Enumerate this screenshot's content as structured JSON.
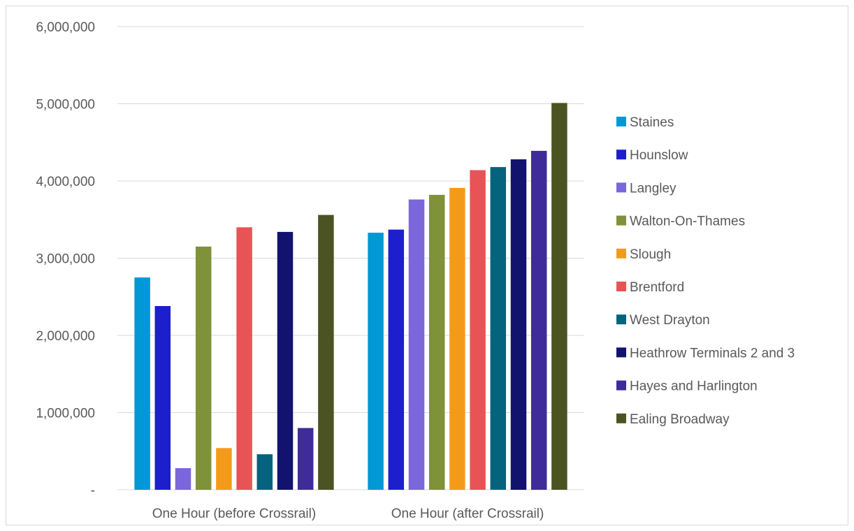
{
  "chart_data": {
    "type": "bar",
    "categories": [
      "One Hour (before Crossrail)",
      "One Hour (after Crossrail)"
    ],
    "series": [
      {
        "name": "Staines",
        "color": "#0099D5",
        "values": [
          2750000,
          3330000
        ]
      },
      {
        "name": "Hounslow",
        "color": "#1D1ECC",
        "values": [
          2380000,
          3370000
        ]
      },
      {
        "name": "Langley",
        "color": "#7B66DB",
        "values": [
          280000,
          3760000
        ]
      },
      {
        "name": "Walton-On-Thames",
        "color": "#7F9139",
        "values": [
          3150000,
          3820000
        ]
      },
      {
        "name": "Slough",
        "color": "#F39B19",
        "values": [
          540000,
          3910000
        ]
      },
      {
        "name": "Brentford",
        "color": "#E85455",
        "values": [
          3400000,
          4140000
        ]
      },
      {
        "name": "West Drayton",
        "color": "#05637D",
        "values": [
          460000,
          4180000
        ]
      },
      {
        "name": "Heathrow Terminals 2 and 3",
        "color": "#12136E",
        "values": [
          3340000,
          4280000
        ]
      },
      {
        "name": "Hayes and Harlington",
        "color": "#3F2B99",
        "values": [
          800000,
          4390000
        ]
      },
      {
        "name": "Ealing Broadway",
        "color": "#4B5322",
        "values": [
          3560000,
          5010000
        ]
      }
    ],
    "ylim": [
      0,
      6000000
    ],
    "yticks": [
      0,
      1000000,
      2000000,
      3000000,
      4000000,
      5000000,
      6000000
    ],
    "ytick_labels": [
      "-",
      "1,000,000",
      "2,000,000",
      "3,000,000",
      "4,000,000",
      "5,000,000",
      "6,000,000"
    ],
    "grid": true,
    "legend_position": "right"
  }
}
